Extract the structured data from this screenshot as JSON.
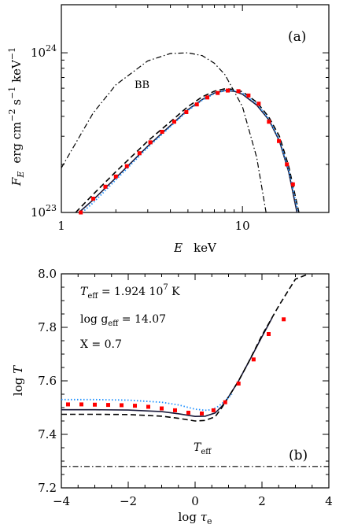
{
  "chart_data": [
    {
      "panel_label": "(a)",
      "type": "line",
      "xscale": "log",
      "yscale": "log",
      "xlim": [
        1,
        30
      ],
      "ylim": [
        1e+23,
        2e+24
      ],
      "xlabel": "E  keV",
      "ylabel": "F_E  erg cm^-2 s^-1 keV^-1",
      "x_ticks": [
        1,
        10
      ],
      "x_tick_labels": [
        "1",
        "10"
      ],
      "y_ticks": [
        1e+23,
        1e+24
      ],
      "y_tick_labels": [
        "10^23",
        "10^24"
      ],
      "annotations": [
        "BB"
      ],
      "series": [
        {
          "name": "BB",
          "style": "dash-dot",
          "x": [
            1,
            1.5,
            2,
            3,
            4,
            5,
            6,
            7,
            8,
            10,
            12,
            13.5
          ],
          "y": [
            1.9e+23,
            4.2e+23,
            6.3e+23,
            8.9e+23,
            9.9e+23,
            1e+24,
            9.6e+23,
            8.6e+23,
            7.3e+23,
            4.6e+23,
            2.2e+23,
            1e+23
          ]
        },
        {
          "style": "solid",
          "x": [
            1.25,
            1.5,
            2,
            3,
            4,
            5,
            6,
            7,
            8,
            9,
            10,
            12,
            14,
            16,
            18,
            20
          ],
          "y": [
            1e+23,
            1.2e+23,
            1.65e+23,
            2.6e+23,
            3.5e+23,
            4.4e+23,
            5.1e+23,
            5.6e+23,
            5.8e+23,
            5.75e+23,
            5.5e+23,
            4.7e+23,
            3.8e+23,
            2.8e+23,
            1.8e+23,
            1e+23
          ]
        },
        {
          "style": "dashed",
          "x": [
            1.2,
            1.5,
            2,
            3,
            4,
            5,
            6,
            7,
            8,
            9,
            10,
            12,
            14,
            16,
            18,
            20.5
          ],
          "y": [
            1e+23,
            1.3e+23,
            1.8e+23,
            2.8e+23,
            3.7e+23,
            4.6e+23,
            5.3e+23,
            5.75e+23,
            5.95e+23,
            5.9e+23,
            5.7e+23,
            4.9e+23,
            3.95e+23,
            3e+23,
            1.95e+23,
            1e+23
          ]
        },
        {
          "style": "dotted",
          "x": [
            1.3,
            1.5,
            2,
            3,
            4,
            5,
            6,
            7,
            8,
            9,
            10,
            12,
            14,
            16,
            18,
            20.3
          ],
          "y": [
            1e+23,
            1.15e+23,
            1.6e+23,
            2.55e+23,
            3.45e+23,
            4.35e+23,
            5.05e+23,
            5.55e+23,
            5.8e+23,
            5.8e+23,
            5.6e+23,
            4.8e+23,
            3.85e+23,
            2.85e+23,
            1.85e+23,
            1e+23
          ]
        },
        {
          "style": "red-squares",
          "x": [
            1.28,
            1.5,
            1.75,
            2.0,
            2.3,
            2.7,
            3.1,
            3.6,
            4.2,
            4.9,
            5.6,
            6.4,
            7.3,
            8.3,
            9.5,
            10.8,
            12.3,
            14.0,
            15.9,
            17.6,
            19.0
          ],
          "y": [
            1e+23,
            1.22e+23,
            1.45e+23,
            1.68e+23,
            1.95e+23,
            2.35e+23,
            2.75e+23,
            3.2e+23,
            3.7e+23,
            4.25e+23,
            4.75e+23,
            5.25e+23,
            5.6e+23,
            5.8e+23,
            5.75e+23,
            5.4e+23,
            4.8e+23,
            3.7e+23,
            2.8e+23,
            2e+23,
            1.5e+23
          ]
        }
      ]
    },
    {
      "panel_label": "(b)",
      "type": "line",
      "xlim": [
        -4,
        4
      ],
      "ylim": [
        7.2,
        8.0
      ],
      "xlabel": "log τe",
      "ylabel": "log T",
      "x_ticks": [
        -4,
        -2,
        0,
        2,
        4
      ],
      "y_ticks": [
        7.2,
        7.4,
        7.6,
        7.8,
        8.0
      ],
      "annotations": {
        "teff_line1": "T",
        "teff_line1_sub": "eff",
        "teff_line1_val": " = 1.924 10",
        "teff_line1_exp": "7",
        "teff_line1_unit": " K",
        "logg_line_a": "log g",
        "logg_line_sub": "eff",
        "logg_line_b": " = 14.07",
        "x_line": "X = 0.7",
        "teff_label": "T",
        "teff_label_sub": "eff"
      },
      "teff_level": 7.28,
      "series": [
        {
          "style": "solid",
          "x": [
            -4,
            -3,
            -2,
            -1,
            -0.5,
            0,
            0.3,
            0.6,
            0.8,
            1.0,
            1.3,
            1.6,
            2.0,
            2.3
          ],
          "y": [
            7.492,
            7.492,
            7.491,
            7.485,
            7.477,
            7.467,
            7.468,
            7.48,
            7.505,
            7.54,
            7.6,
            7.67,
            7.765,
            7.835
          ]
        },
        {
          "style": "dashed",
          "x": [
            -4,
            -3,
            -2,
            -1,
            -0.5,
            0,
            0.3,
            0.6,
            0.8,
            1.0,
            1.3,
            1.6,
            2.0,
            2.5,
            3.0,
            3.4
          ],
          "y": [
            7.475,
            7.475,
            7.474,
            7.468,
            7.46,
            7.45,
            7.452,
            7.466,
            7.5,
            7.54,
            7.6,
            7.67,
            7.77,
            7.88,
            7.98,
            8.05
          ]
        },
        {
          "style": "dotted",
          "x": [
            -4,
            -3,
            -2,
            -1,
            -0.5,
            0,
            0.3,
            0.5,
            0.7,
            0.9,
            1.1
          ],
          "y": [
            7.53,
            7.53,
            7.528,
            7.52,
            7.51,
            7.494,
            7.49,
            7.492,
            7.505,
            7.525,
            7.55
          ]
        },
        {
          "style": "red-squares",
          "x": [
            -3.8,
            -3.4,
            -3.0,
            -2.6,
            -2.2,
            -1.8,
            -1.4,
            -1.0,
            -0.6,
            -0.2,
            0.2,
            0.55,
            0.9,
            1.3,
            1.75,
            2.2,
            2.65
          ],
          "y": [
            7.512,
            7.512,
            7.511,
            7.51,
            7.509,
            7.507,
            7.503,
            7.497,
            7.49,
            7.481,
            7.478,
            7.49,
            7.52,
            7.59,
            7.68,
            7.775,
            7.83
          ]
        }
      ]
    }
  ]
}
